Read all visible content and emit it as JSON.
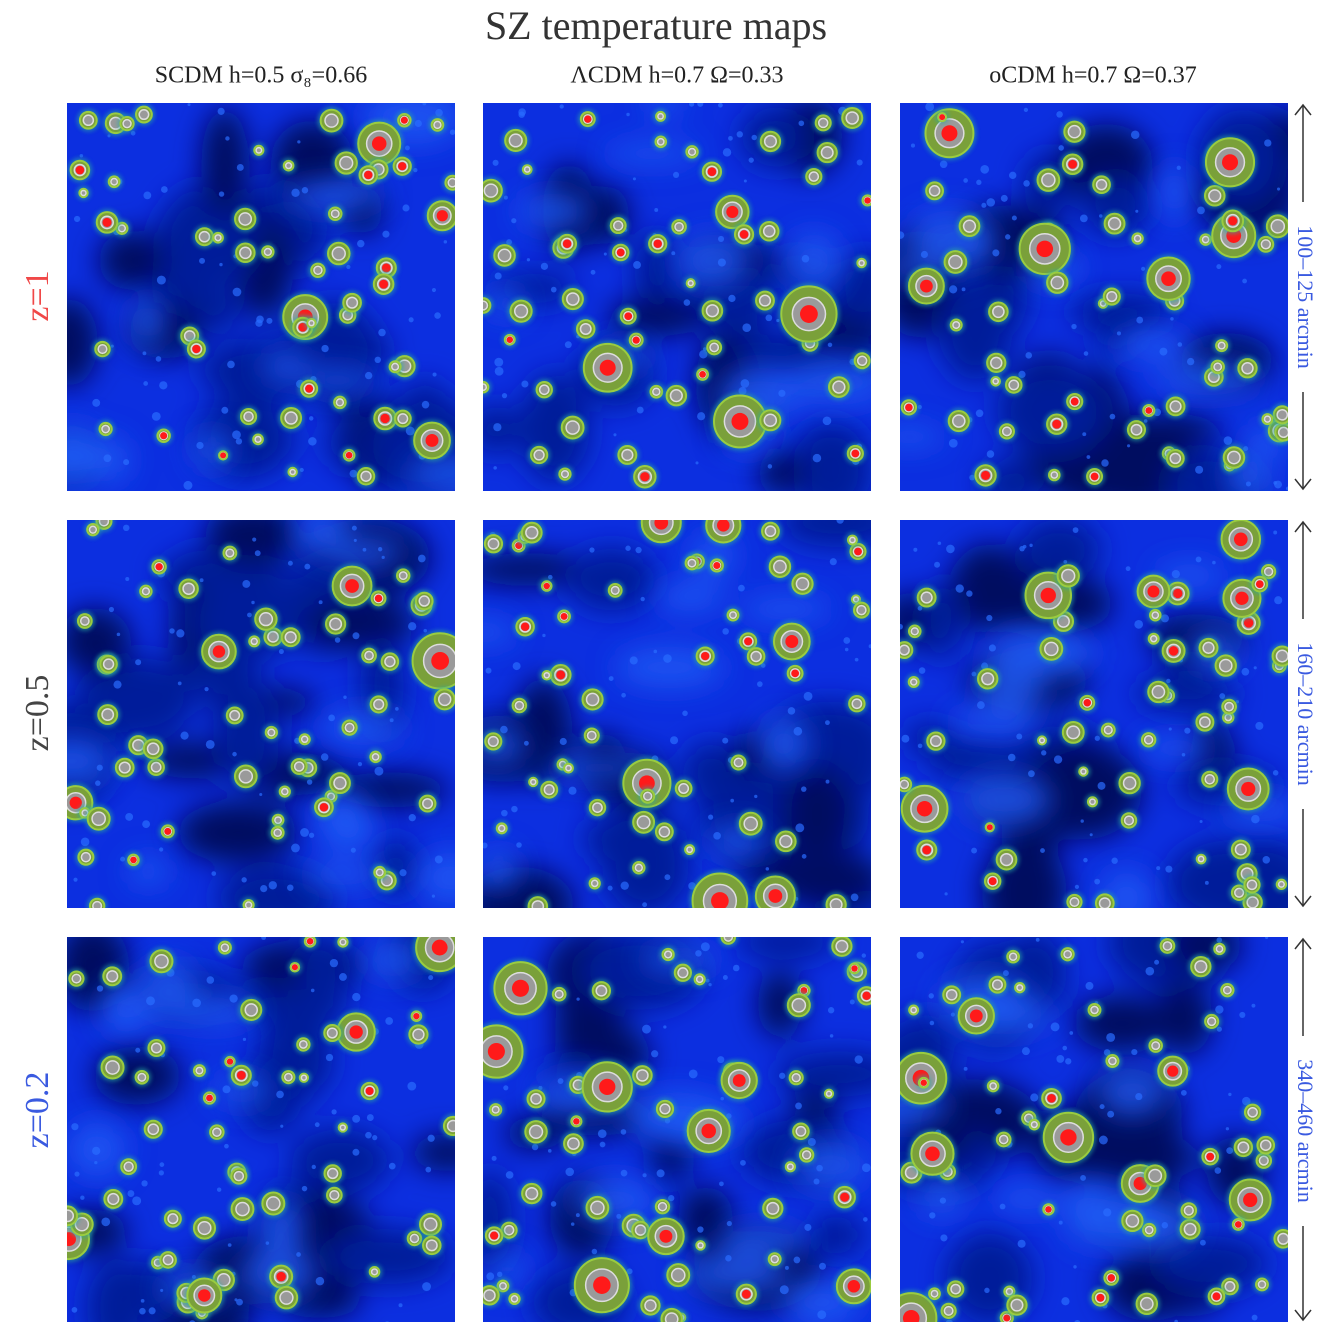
{
  "title": "SZ temperature maps",
  "columns": [
    "SCDM h=0.5 σ₈=0.66",
    "ΛCDM h=0.7 Ω=0.33",
    "oCDM h=0.7 Ω=0.37"
  ],
  "rows": [
    {
      "label": "z=1",
      "scale": "100–125 arcmin"
    },
    {
      "label": "z=0.5",
      "scale": "160–210 arcmin"
    },
    {
      "label": "z=0.2",
      "scale": "340–460 arcmin"
    }
  ]
}
